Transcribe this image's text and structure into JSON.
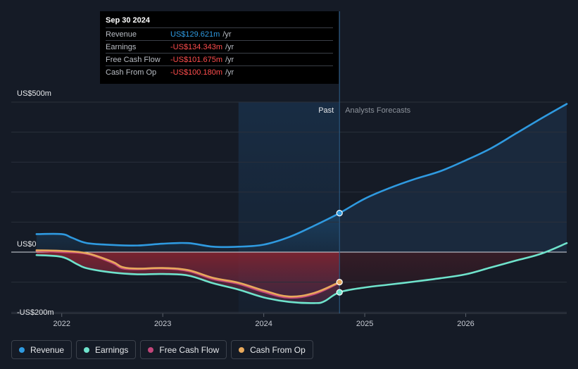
{
  "tooltip": {
    "date": "Sep 30 2024",
    "rows": [
      {
        "label": "Revenue",
        "value": "US$129.621m",
        "unit": "/yr",
        "color": "#2f9ae0"
      },
      {
        "label": "Earnings",
        "value": "-US$134.343m",
        "unit": "/yr",
        "color": "#ff4d4d"
      },
      {
        "label": "Free Cash Flow",
        "value": "-US$101.675m",
        "unit": "/yr",
        "color": "#ff4d4d"
      },
      {
        "label": "Cash From Op",
        "value": "-US$100.180m",
        "unit": "/yr",
        "color": "#ff4d4d"
      }
    ]
  },
  "legend": [
    {
      "label": "Revenue",
      "color": "#2f9ae0"
    },
    {
      "label": "Earnings",
      "color": "#6fe3cc"
    },
    {
      "label": "Free Cash Flow",
      "color": "#c2467a"
    },
    {
      "label": "Cash From Op",
      "color": "#e8a95c"
    }
  ],
  "chart_data": {
    "type": "line",
    "title": "",
    "units": "US$m",
    "ylim": [
      -200,
      500
    ],
    "y_tick_labels": [
      {
        "value": 500,
        "label": "US$500m"
      },
      {
        "value": 0,
        "label": "US$0"
      },
      {
        "value": -200,
        "label": "-US$200m"
      }
    ],
    "x_tick_labels": [
      {
        "value": 2022.0,
        "label": "2022"
      },
      {
        "value": 2023.0,
        "label": "2023"
      },
      {
        "value": 2024.0,
        "label": "2024"
      },
      {
        "value": 2025.0,
        "label": "2025"
      },
      {
        "value": 2026.0,
        "label": "2026"
      }
    ],
    "xlim": [
      2021.5,
      2027.0
    ],
    "past_label": "Past",
    "forecast_label": "Analysts Forecasts",
    "past_region_start": 2023.75,
    "divider_x": 2024.75,
    "series": [
      {
        "name": "Revenue",
        "color": "#2f9ae0",
        "points": [
          [
            2021.75,
            60
          ],
          [
            2022.0,
            60
          ],
          [
            2022.1,
            48
          ],
          [
            2022.25,
            30
          ],
          [
            2022.5,
            24
          ],
          [
            2022.75,
            22
          ],
          [
            2023.0,
            28
          ],
          [
            2023.25,
            30
          ],
          [
            2023.5,
            18
          ],
          [
            2023.75,
            18
          ],
          [
            2024.0,
            25
          ],
          [
            2024.25,
            50
          ],
          [
            2024.5,
            88
          ],
          [
            2024.75,
            130
          ],
          [
            2025.0,
            178
          ],
          [
            2025.25,
            214
          ],
          [
            2025.5,
            244
          ],
          [
            2025.75,
            270
          ],
          [
            2026.0,
            306
          ],
          [
            2026.25,
            346
          ],
          [
            2026.5,
            396
          ],
          [
            2026.75,
            446
          ],
          [
            2027.0,
            494
          ]
        ],
        "forecast_from": 2024.75
      },
      {
        "name": "Earnings",
        "color": "#6fe3cc",
        "points": [
          [
            2021.75,
            -10
          ],
          [
            2022.0,
            -16
          ],
          [
            2022.15,
            -40
          ],
          [
            2022.25,
            -54
          ],
          [
            2022.5,
            -68
          ],
          [
            2022.75,
            -74
          ],
          [
            2023.0,
            -73
          ],
          [
            2023.25,
            -78
          ],
          [
            2023.5,
            -104
          ],
          [
            2023.75,
            -125
          ],
          [
            2024.0,
            -151
          ],
          [
            2024.25,
            -166
          ],
          [
            2024.5,
            -170
          ],
          [
            2024.6,
            -164
          ],
          [
            2024.75,
            -134
          ],
          [
            2025.0,
            -118
          ],
          [
            2025.25,
            -108
          ],
          [
            2025.5,
            -98
          ],
          [
            2025.75,
            -87
          ],
          [
            2026.0,
            -74
          ],
          [
            2026.25,
            -51
          ],
          [
            2026.5,
            -28
          ],
          [
            2026.75,
            -5
          ],
          [
            2027.0,
            30
          ]
        ],
        "forecast_from": 2024.75
      },
      {
        "name": "Free Cash Flow",
        "color": "#c2467a",
        "points": [
          [
            2021.75,
            4
          ],
          [
            2022.0,
            0
          ],
          [
            2022.25,
            -6
          ],
          [
            2022.5,
            -36
          ],
          [
            2022.6,
            -54
          ],
          [
            2022.75,
            -57
          ],
          [
            2023.0,
            -55
          ],
          [
            2023.25,
            -63
          ],
          [
            2023.5,
            -90
          ],
          [
            2023.75,
            -106
          ],
          [
            2024.0,
            -133
          ],
          [
            2024.25,
            -152
          ],
          [
            2024.5,
            -140
          ],
          [
            2024.75,
            -102
          ]
        ]
      },
      {
        "name": "Cash From Op",
        "color": "#e8a95c",
        "points": [
          [
            2021.75,
            6
          ],
          [
            2022.0,
            4
          ],
          [
            2022.25,
            -4
          ],
          [
            2022.5,
            -32
          ],
          [
            2022.6,
            -50
          ],
          [
            2022.75,
            -55
          ],
          [
            2023.0,
            -53
          ],
          [
            2023.25,
            -60
          ],
          [
            2023.5,
            -86
          ],
          [
            2023.75,
            -102
          ],
          [
            2024.0,
            -128
          ],
          [
            2024.25,
            -148
          ],
          [
            2024.5,
            -136
          ],
          [
            2024.75,
            -100
          ]
        ]
      }
    ]
  }
}
